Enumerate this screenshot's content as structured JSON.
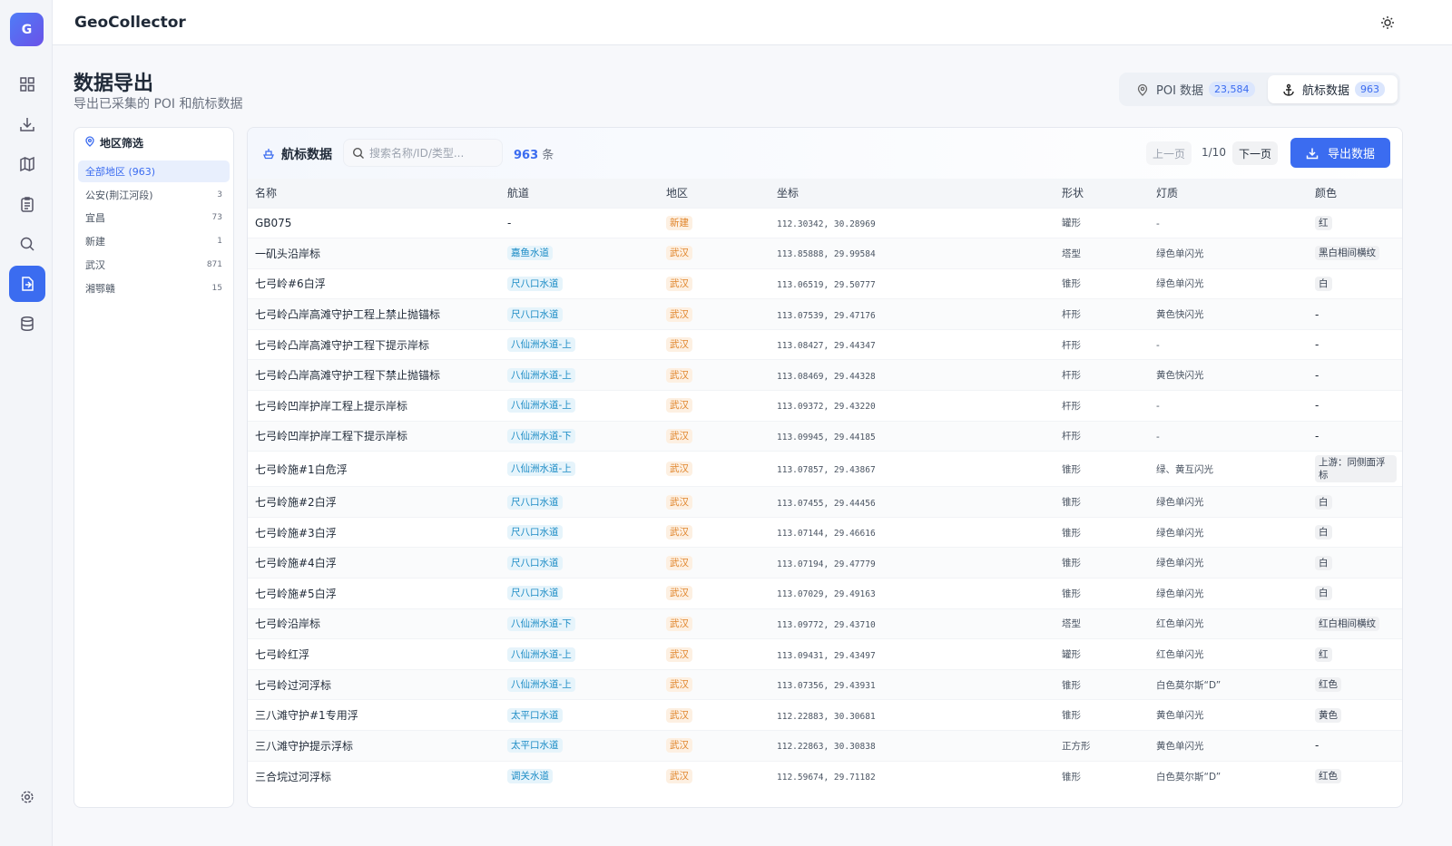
{
  "header": {
    "logo": "G",
    "app_name": "GeoCollector"
  },
  "page": {
    "title": "数据导出",
    "subtitle": "导出已采集的 POI 和航标数据"
  },
  "tabs": [
    {
      "label": "POI 数据",
      "count": "23,584"
    },
    {
      "label": "航标数据",
      "count": "963"
    }
  ],
  "filter": {
    "title": "地区筛选",
    "items": [
      {
        "label": "全部地区 (963)"
      },
      {
        "label": "公安(荆江河段)",
        "count": "3"
      },
      {
        "label": "宜昌",
        "count": "73"
      },
      {
        "label": "新建",
        "count": "1"
      },
      {
        "label": "武汉",
        "count": "871"
      },
      {
        "label": "湘鄂赣",
        "count": "15"
      }
    ]
  },
  "table": {
    "title": "航标数据",
    "search_placeholder": "搜索名称/ID/类型...",
    "count": "963",
    "count_unit": "条",
    "pagination": {
      "prev": "上一页",
      "page": "1/10",
      "next": "下一页"
    },
    "export_button": "导出数据",
    "columns": [
      "名称",
      "航道",
      "地区",
      "坐标",
      "形状",
      "灯质",
      "颜色"
    ],
    "rows": [
      [
        "GB075",
        "-",
        "新建",
        "112.30342, 30.28969",
        "罐形",
        "-",
        "红"
      ],
      [
        "一矶头沿岸标",
        "嘉鱼水道",
        "武汉",
        "113.85888, 29.99584",
        "塔型",
        "绿色单闪光",
        "黑白相间横纹"
      ],
      [
        "七弓岭#6白浮",
        "尺八口水道",
        "武汉",
        "113.06519, 29.50777",
        "锥形",
        "绿色单闪光",
        "白"
      ],
      [
        "七弓岭凸岸高滩守护工程上禁止抛锚标",
        "尺八口水道",
        "武汉",
        "113.07539, 29.47176",
        "杆形",
        "黄色快闪光",
        "-"
      ],
      [
        "七弓岭凸岸高滩守护工程下提示岸标",
        "八仙洲水道-上",
        "武汉",
        "113.08427, 29.44347",
        "杆形",
        "-",
        "-"
      ],
      [
        "七弓岭凸岸高滩守护工程下禁止抛锚标",
        "八仙洲水道-上",
        "武汉",
        "113.08469, 29.44328",
        "杆形",
        "黄色快闪光",
        "-"
      ],
      [
        "七弓岭凹岸护岸工程上提示岸标",
        "八仙洲水道-上",
        "武汉",
        "113.09372, 29.43220",
        "杆形",
        "-",
        "-"
      ],
      [
        "七弓岭凹岸护岸工程下提示岸标",
        "八仙洲水道-下",
        "武汉",
        "113.09945, 29.44185",
        "杆形",
        "-",
        "-"
      ],
      [
        "七弓岭施#1白危浮",
        "八仙洲水道-上",
        "武汉",
        "113.07857, 29.43867",
        "锥形",
        "绿、黄互闪光",
        "上游：同侧面浮标"
      ],
      [
        "七弓岭施#2白浮",
        "尺八口水道",
        "武汉",
        "113.07455, 29.44456",
        "锥形",
        "绿色单闪光",
        "白"
      ],
      [
        "七弓岭施#3白浮",
        "尺八口水道",
        "武汉",
        "113.07144, 29.46616",
        "锥形",
        "绿色单闪光",
        "白"
      ],
      [
        "七弓岭施#4白浮",
        "尺八口水道",
        "武汉",
        "113.07194, 29.47779",
        "锥形",
        "绿色单闪光",
        "白"
      ],
      [
        "七弓岭施#5白浮",
        "尺八口水道",
        "武汉",
        "113.07029, 29.49163",
        "锥形",
        "绿色单闪光",
        "白"
      ],
      [
        "七弓岭沿岸标",
        "八仙洲水道-下",
        "武汉",
        "113.09772, 29.43710",
        "塔型",
        "红色单闪光",
        "红白相间横纹"
      ],
      [
        "七弓岭红浮",
        "八仙洲水道-上",
        "武汉",
        "113.09431, 29.43497",
        "罐形",
        "红色单闪光",
        "红"
      ],
      [
        "七弓岭过河浮标",
        "八仙洲水道-上",
        "武汉",
        "113.07356, 29.43931",
        "锥形",
        "白色莫尔斯“D”",
        "红色"
      ],
      [
        "三八滩守护#1专用浮",
        "太平口水道",
        "武汉",
        "112.22883, 30.30681",
        "锥形",
        "黄色单闪光",
        "黄色"
      ],
      [
        "三八滩守护提示浮标",
        "太平口水道",
        "武汉",
        "112.22863, 30.30838",
        "正方形",
        "黄色单闪光",
        "-"
      ],
      [
        "三合垸过河浮标",
        "调关水道",
        "武汉",
        "112.59674, 29.71182",
        "锥形",
        "白色莫尔斯“D”",
        "红色"
      ]
    ]
  }
}
